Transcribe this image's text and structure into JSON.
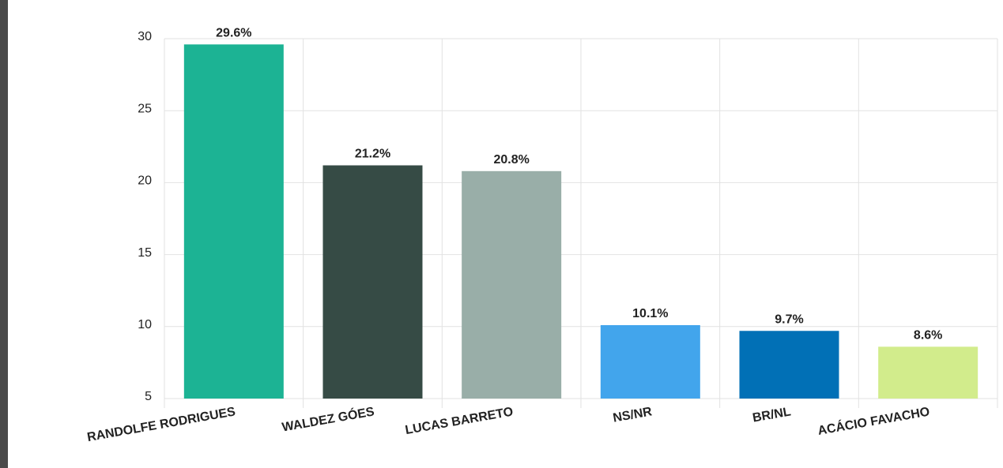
{
  "chart_data": {
    "type": "bar",
    "categories": [
      "RANDOLFE RODRIGUES",
      "WALDEZ GÓES",
      "LUCAS BARRETO",
      "NS/NR",
      "BR/NL",
      "ACÁCIO FAVACHO"
    ],
    "values": [
      29.6,
      21.2,
      20.8,
      10.1,
      9.7,
      8.6
    ],
    "value_labels": [
      "29.6%",
      "21.2%",
      "20.8%",
      "10.1%",
      "9.7%",
      "8.6%"
    ],
    "colors": [
      "#1cb394",
      "#364b45",
      "#99aea8",
      "#42a5ec",
      "#0170b6",
      "#d2ec8c"
    ],
    "ylim": [
      5,
      30
    ],
    "yticks": [
      5,
      10,
      15,
      20,
      25,
      30
    ],
    "grid": true
  }
}
